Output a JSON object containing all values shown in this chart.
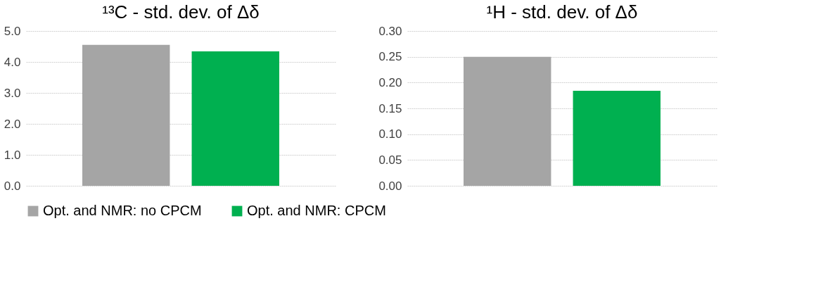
{
  "chart_data": [
    {
      "type": "bar",
      "title": "¹³C - std. dev. of Δδ",
      "categories": [
        null
      ],
      "series": [
        {
          "name": "Opt. and NMR: no CPCM",
          "color": "#a5a5a5",
          "values": [
            4.55
          ]
        },
        {
          "name": "Opt. and NMR: CPCM",
          "color": "#00b050",
          "values": [
            4.34
          ]
        }
      ],
      "ylim": [
        0,
        5
      ],
      "yticks": [
        {
          "value": 0,
          "label": "0.0"
        },
        {
          "value": 1,
          "label": "1.0"
        },
        {
          "value": 2,
          "label": "2.0"
        },
        {
          "value": 3,
          "label": "3.0"
        },
        {
          "value": 4,
          "label": "4.0"
        },
        {
          "value": 5,
          "label": "5.0"
        }
      ],
      "grid": "y",
      "legend": "bottom"
    },
    {
      "type": "bar",
      "title": "¹H - std. dev. of Δδ",
      "categories": [
        null
      ],
      "series": [
        {
          "name": "Opt. and NMR: no CPCM",
          "color": "#a5a5a5",
          "values": [
            0.25
          ]
        },
        {
          "name": "Opt. and NMR: CPCM",
          "color": "#00b050",
          "values": [
            0.184
          ]
        }
      ],
      "ylim": [
        0,
        0.3
      ],
      "yticks": [
        {
          "value": 0,
          "label": "0.00"
        },
        {
          "value": 0.05,
          "label": "0.05"
        },
        {
          "value": 0.1,
          "label": "0.10"
        },
        {
          "value": 0.15,
          "label": "0.15"
        },
        {
          "value": 0.2,
          "label": "0.20"
        },
        {
          "value": 0.25,
          "label": "0.25"
        },
        {
          "value": 0.3,
          "label": "0.30"
        }
      ],
      "grid": "y",
      "legend": "bottom"
    }
  ]
}
